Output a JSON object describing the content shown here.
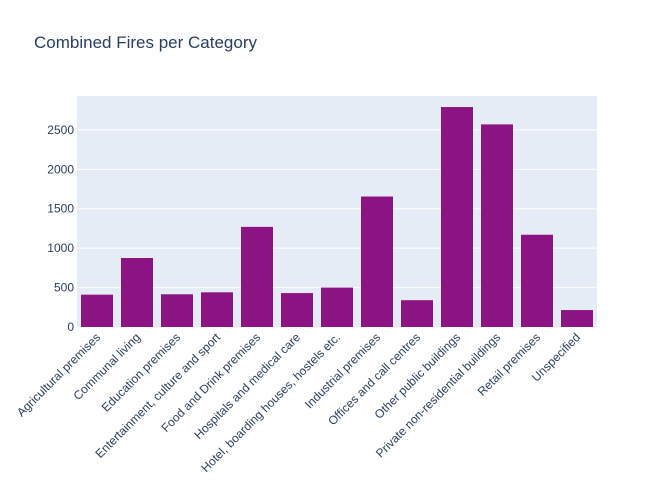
{
  "chart_data": {
    "type": "bar",
    "title": "Combined Fires per Category",
    "xlabel": "",
    "ylabel": "",
    "categories": [
      "Agricultural premises",
      "Communal living",
      "Education premises",
      "Entertainment, culture and sport",
      "Food and Drink premises",
      "Hospitals and medical care",
      "Hotel, boarding houses, hostels etc.",
      "Industrial premises",
      "Offices and call centres",
      "Other public buildings",
      "Private non-residential buildings",
      "Retail premises",
      "Unspecified"
    ],
    "values": [
      410,
      875,
      415,
      440,
      1270,
      430,
      500,
      1655,
      340,
      2790,
      2570,
      1170,
      215
    ],
    "ylim": [
      0,
      2930
    ],
    "yticks": [
      0,
      500,
      1000,
      1500,
      2000,
      2500
    ],
    "grid": true,
    "legend": "none",
    "colors": {
      "bar": "#8b1384",
      "plot_background": "#e5ecf6",
      "gridline": "#ffffff",
      "text": "#2a3f5f"
    }
  }
}
